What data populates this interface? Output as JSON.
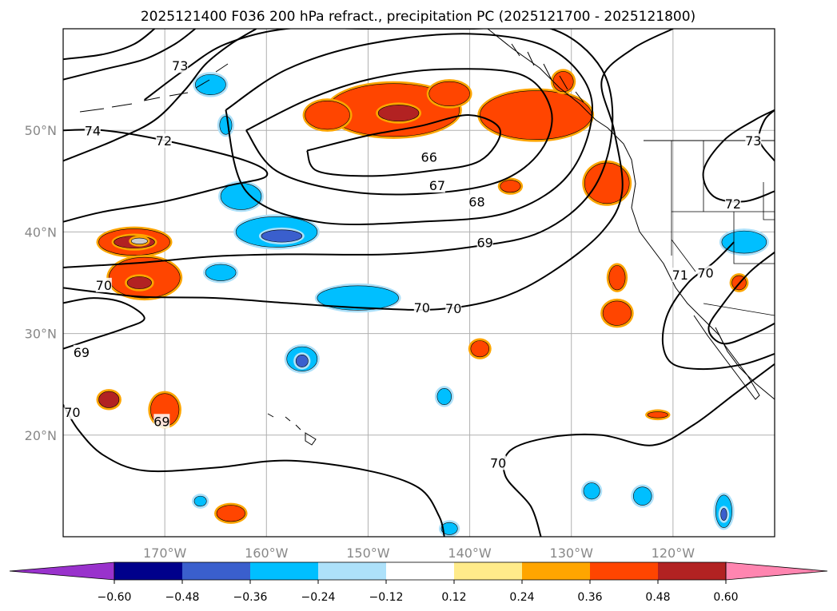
{
  "chart_data": {
    "type": "contour-map",
    "title": "2025121400 F036 200 hPa refract., precipitation PC (2025121700 - 2025121800)",
    "map": {
      "lon_range": [
        -180,
        -110
      ],
      "lat_range": [
        10,
        60
      ],
      "lon_ticks": [
        -170,
        -160,
        -150,
        -140,
        -130,
        -120
      ],
      "lon_tick_labels": [
        "170°W",
        "160°W",
        "150°W",
        "140°W",
        "130°W",
        "120°W"
      ],
      "lat_ticks": [
        20,
        30,
        40,
        50
      ],
      "lat_tick_labels": [
        "20°N",
        "30°N",
        "40°N",
        "50°N"
      ],
      "grid": true
    },
    "contour_labels": [
      {
        "text": "74",
        "lon": -177.1,
        "lat": 49.9
      },
      {
        "text": "73",
        "lon": -168.5,
        "lat": 56.3
      },
      {
        "text": "72",
        "lon": -170.1,
        "lat": 48.9
      },
      {
        "text": "66",
        "lon": -144.0,
        "lat": 47.3
      },
      {
        "text": "67",
        "lon": -143.2,
        "lat": 44.5
      },
      {
        "text": "68",
        "lon": -139.3,
        "lat": 42.9
      },
      {
        "text": "69",
        "lon": -138.5,
        "lat": 38.9
      },
      {
        "text": "70",
        "lon": -176.0,
        "lat": 34.7
      },
      {
        "text": "70",
        "lon": -144.7,
        "lat": 32.5
      },
      {
        "text": "70",
        "lon": -141.6,
        "lat": 32.4
      },
      {
        "text": "69",
        "lon": -178.2,
        "lat": 28.1
      },
      {
        "text": "70",
        "lon": -179.1,
        "lat": 22.2
      },
      {
        "text": "69",
        "lon": -170.3,
        "lat": 21.3
      },
      {
        "text": "70",
        "lon": -137.2,
        "lat": 17.2
      },
      {
        "text": "73",
        "lon": -112.1,
        "lat": 48.9
      },
      {
        "text": "72",
        "lon": -114.1,
        "lat": 42.7
      },
      {
        "text": "71",
        "lon": -119.3,
        "lat": 35.7
      },
      {
        "text": "70",
        "lon": -116.8,
        "lat": 35.9
      }
    ],
    "contours": [
      {
        "value": 66,
        "path": [
          [
            -156,
            48
          ],
          [
            -150,
            49.5
          ],
          [
            -145,
            50.4
          ],
          [
            -140,
            51.5
          ],
          [
            -137,
            50
          ],
          [
            -139,
            47
          ],
          [
            -144,
            46
          ],
          [
            -150,
            45.5
          ],
          [
            -155,
            46
          ],
          [
            -156,
            48
          ]
        ]
      },
      {
        "value": 67,
        "path": [
          [
            -162,
            50
          ],
          [
            -156,
            53
          ],
          [
            -150,
            55
          ],
          [
            -143,
            56
          ],
          [
            -135,
            55.5
          ],
          [
            -132,
            52
          ],
          [
            -133,
            48
          ],
          [
            -137,
            45
          ],
          [
            -144,
            43.8
          ],
          [
            -152,
            44
          ],
          [
            -159,
            46
          ],
          [
            -162,
            50
          ]
        ]
      },
      {
        "value": 68,
        "path": [
          [
            -164,
            52
          ],
          [
            -158,
            56
          ],
          [
            -150,
            58.5
          ],
          [
            -140,
            59.5
          ],
          [
            -132,
            58
          ],
          [
            -128,
            53
          ],
          [
            -130,
            46
          ],
          [
            -136,
            42
          ],
          [
            -145,
            41
          ],
          [
            -155,
            41
          ],
          [
            -162,
            44
          ],
          [
            -164,
            52
          ]
        ]
      },
      {
        "value": 69,
        "path": [
          [
            -172,
            53
          ],
          [
            -168,
            56
          ],
          [
            -164,
            58.5
          ],
          [
            -158,
            60
          ],
          [
            -150,
            60
          ],
          [
            -140,
            60
          ],
          [
            -132,
            60
          ],
          [
            -127,
            56
          ],
          [
            -126,
            50
          ],
          [
            -128,
            44
          ],
          [
            -133,
            40
          ],
          [
            -140,
            38.5
          ],
          [
            -148,
            37.8
          ],
          [
            -158,
            37.8
          ],
          [
            -165,
            37.6
          ],
          [
            -172,
            37
          ],
          [
            -180,
            36.5
          ]
        ]
      },
      {
        "value": 70,
        "path": [
          [
            -180,
            34.5
          ],
          [
            -176,
            34
          ],
          [
            -172,
            33.6
          ],
          [
            -165,
            33.5
          ],
          [
            -158,
            33
          ],
          [
            -150,
            32.5
          ],
          [
            -143,
            32.4
          ],
          [
            -137,
            33.5
          ],
          [
            -132,
            36
          ],
          [
            -127,
            40
          ],
          [
            -125,
            44
          ],
          [
            -125.8,
            50
          ],
          [
            -127,
            55
          ],
          [
            -124,
            58
          ],
          [
            -120,
            60
          ]
        ]
      },
      {
        "value": 70,
        "path": [
          [
            -180,
            23
          ],
          [
            -178.5,
            20.5
          ],
          [
            -176,
            18
          ],
          [
            -172,
            16.5
          ],
          [
            -165,
            16.8
          ],
          [
            -158,
            17.5
          ],
          [
            -150,
            16.5
          ],
          [
            -145,
            14.8
          ],
          [
            -143,
            12
          ],
          [
            -142.5,
            10
          ]
        ]
      },
      {
        "value": 70,
        "path": [
          [
            -133,
            10
          ],
          [
            -134,
            13
          ],
          [
            -136.5,
            16
          ],
          [
            -136,
            18.5
          ],
          [
            -132,
            19.8
          ],
          [
            -127,
            20
          ],
          [
            -122,
            19
          ],
          [
            -118,
            21
          ],
          [
            -114,
            24
          ],
          [
            -110,
            27
          ]
        ]
      },
      {
        "value": 71,
        "path": [
          [
            -180,
            41
          ],
          [
            -176,
            42
          ],
          [
            -170,
            43
          ],
          [
            -164,
            44.5
          ],
          [
            -160,
            45.5
          ],
          [
            -162,
            47
          ],
          [
            -170,
            49
          ],
          [
            -176,
            50
          ],
          [
            -180,
            50
          ]
        ]
      },
      {
        "value": 72,
        "path": [
          [
            -180,
            47
          ],
          [
            -175,
            49
          ],
          [
            -171,
            51
          ],
          [
            -168,
            54
          ],
          [
            -166,
            56.5
          ],
          [
            -163.5,
            58.5
          ],
          [
            -161,
            60
          ]
        ]
      },
      {
        "value": 73,
        "path": [
          [
            -180,
            55
          ],
          [
            -176,
            56
          ],
          [
            -172,
            57
          ],
          [
            -169,
            58.5
          ],
          [
            -167,
            60
          ]
        ]
      },
      {
        "value": 74,
        "path": [
          [
            -180,
            57
          ],
          [
            -176,
            57.5
          ],
          [
            -173,
            58.5
          ],
          [
            -171,
            60
          ]
        ]
      },
      {
        "value": 69,
        "path": [
          [
            -180,
            28.5
          ],
          [
            -177,
            29.5
          ],
          [
            -174,
            30.5
          ],
          [
            -172,
            31.5
          ],
          [
            -174,
            33
          ],
          [
            -177,
            33.5
          ],
          [
            -180,
            33
          ]
        ]
      },
      {
        "value": 70,
        "path": [
          [
            -114,
            39
          ],
          [
            -116,
            37
          ],
          [
            -118.5,
            35
          ],
          [
            -120.5,
            32
          ],
          [
            -121,
            29
          ],
          [
            -120,
            27
          ],
          [
            -117,
            26.5
          ],
          [
            -113,
            27
          ],
          [
            -110,
            28
          ]
        ]
      },
      {
        "value": 71,
        "path": [
          [
            -110,
            38
          ],
          [
            -112.5,
            36
          ],
          [
            -115,
            33
          ],
          [
            -116.5,
            30.5
          ],
          [
            -115,
            29
          ],
          [
            -112,
            30
          ],
          [
            -110,
            31
          ]
        ]
      },
      {
        "value": 72,
        "path": [
          [
            -110,
            44
          ],
          [
            -113,
            43
          ],
          [
            -116,
            43.5
          ],
          [
            -117,
            46
          ],
          [
            -115,
            49
          ],
          [
            -112,
            51
          ],
          [
            -110,
            52
          ]
        ]
      },
      {
        "value": 73,
        "path": [
          [
            -110,
            47
          ],
          [
            -111.5,
            49
          ],
          [
            -111,
            51
          ],
          [
            -110,
            52
          ]
        ]
      }
    ],
    "precip_pc_areas": [
      {
        "bin": "0.36",
        "lon": -147.5,
        "lat": 52.0,
        "rlon": 6.5,
        "rlat": 2.6
      },
      {
        "bin": "0.36",
        "lon": -154.0,
        "lat": 51.5,
        "rlon": 2.2,
        "rlat": 1.4
      },
      {
        "bin": "0.36",
        "lon": -142.0,
        "lat": 53.6,
        "rlon": 2.0,
        "rlat": 1.2
      },
      {
        "bin": "0.36",
        "lon": -133.5,
        "lat": 51.5,
        "rlon": 5.5,
        "rlat": 2.4
      },
      {
        "bin": "0.48",
        "lon": -147.0,
        "lat": 51.7,
        "rlon": 2.0,
        "rlat": 0.8
      },
      {
        "bin": "0.36",
        "lon": -126.5,
        "lat": 44.8,
        "rlon": 2.2,
        "rlat": 2.0
      },
      {
        "bin": "0.36",
        "lon": -173.0,
        "lat": 39.0,
        "rlon": 3.5,
        "rlat": 1.3
      },
      {
        "bin": "0.48",
        "lon": -173.0,
        "lat": 39.0,
        "rlon": 2.0,
        "rlat": 0.6
      },
      {
        "bin": "0.60",
        "lon": -172.5,
        "lat": 39.1,
        "rlon": 0.8,
        "rlat": 0.3
      },
      {
        "bin": "0.36",
        "lon": -172.0,
        "lat": 35.5,
        "rlon": 3.5,
        "rlat": 2.0
      },
      {
        "bin": "0.48",
        "lon": -172.5,
        "lat": 35.0,
        "rlon": 1.2,
        "rlat": 0.6
      },
      {
        "bin": "0.36",
        "lon": -170.0,
        "lat": 22.5,
        "rlon": 1.4,
        "rlat": 1.6
      },
      {
        "bin": "0.48",
        "lon": -175.5,
        "lat": 23.5,
        "rlon": 1.0,
        "rlat": 0.8
      },
      {
        "bin": "0.36",
        "lon": -163.5,
        "lat": 12.3,
        "rlon": 1.4,
        "rlat": 0.8
      },
      {
        "bin": "0.36",
        "lon": -125.5,
        "lat": 32.0,
        "rlon": 1.4,
        "rlat": 1.2
      },
      {
        "bin": "0.36",
        "lon": -125.5,
        "lat": 35.5,
        "rlon": 0.8,
        "rlat": 1.2
      },
      {
        "bin": "0.36",
        "lon": -139.0,
        "lat": 28.5,
        "rlon": 0.9,
        "rlat": 0.8
      },
      {
        "bin": "0.36",
        "lon": -136.0,
        "lat": 44.5,
        "rlon": 1.0,
        "rlat": 0.6
      },
      {
        "bin": "0.36",
        "lon": -121.5,
        "lat": 22.0,
        "rlon": 1.0,
        "rlat": 0.3
      },
      {
        "bin": "0.36",
        "lon": -113.5,
        "lat": 35.0,
        "rlon": 0.7,
        "rlat": 0.7
      },
      {
        "bin": "0.36",
        "lon": -130.8,
        "lat": 54.8,
        "rlon": 1.0,
        "rlat": 1.0
      },
      {
        "bin": "-0.36",
        "lon": -159.0,
        "lat": 40.0,
        "rlon": 4.0,
        "rlat": 1.5
      },
      {
        "bin": "-0.48",
        "lon": -158.5,
        "lat": 39.6,
        "rlon": 2.0,
        "rlat": 0.6
      },
      {
        "bin": "-0.36",
        "lon": -162.5,
        "lat": 43.5,
        "rlon": 2.0,
        "rlat": 1.3
      },
      {
        "bin": "-0.36",
        "lon": -151.0,
        "lat": 33.5,
        "rlon": 4.0,
        "rlat": 1.2
      },
      {
        "bin": "-0.36",
        "lon": -164.5,
        "lat": 36.0,
        "rlon": 1.5,
        "rlat": 0.8
      },
      {
        "bin": "-0.36",
        "lon": -156.5,
        "lat": 27.5,
        "rlon": 1.5,
        "rlat": 1.2
      },
      {
        "bin": "-0.48",
        "lon": -156.5,
        "lat": 27.3,
        "rlon": 0.6,
        "rlat": 0.6
      },
      {
        "bin": "-0.36",
        "lon": -113.0,
        "lat": 39.0,
        "rlon": 2.2,
        "rlat": 1.1
      },
      {
        "bin": "-0.36",
        "lon": -142.5,
        "lat": 23.8,
        "rlon": 0.7,
        "rlat": 0.8
      },
      {
        "bin": "-0.36",
        "lon": -115.0,
        "lat": 12.5,
        "rlon": 0.8,
        "rlat": 1.6
      },
      {
        "bin": "-0.48",
        "lon": -115.0,
        "lat": 12.2,
        "rlon": 0.3,
        "rlat": 0.6
      },
      {
        "bin": "-0.36",
        "lon": -123.0,
        "lat": 14.0,
        "rlon": 0.9,
        "rlat": 0.9
      },
      {
        "bin": "-0.36",
        "lon": -128.0,
        "lat": 14.5,
        "rlon": 0.8,
        "rlat": 0.8
      },
      {
        "bin": "-0.36",
        "lon": -142.0,
        "lat": 10.8,
        "rlon": 0.8,
        "rlat": 0.6
      },
      {
        "bin": "-0.36",
        "lon": -165.5,
        "lat": 54.5,
        "rlon": 1.5,
        "rlat": 1.0
      },
      {
        "bin": "-0.36",
        "lon": -164.0,
        "lat": 50.5,
        "rlon": 0.6,
        "rlat": 0.9
      },
      {
        "bin": "-0.36",
        "lon": -166.5,
        "lat": 13.5,
        "rlon": 0.6,
        "rlat": 0.5
      }
    ],
    "colorbar": {
      "ticks": [
        "−0.60",
        "−0.48",
        "−0.36",
        "−0.24",
        "−0.12",
        "0.12",
        "0.24",
        "0.36",
        "0.48",
        "0.60"
      ],
      "bins": [
        {
          "key": "lt-0.60",
          "color": "#9932CC"
        },
        {
          "key": "-0.60",
          "color": "#00008B"
        },
        {
          "key": "-0.48",
          "color": "#3A5FCD"
        },
        {
          "key": "-0.36",
          "color": "#00BFFF"
        },
        {
          "key": "-0.24",
          "color": "#ADE1FA"
        },
        {
          "key": "-0.12",
          "color": "#FFFFFF"
        },
        {
          "key": "0.12",
          "color": "#FFEB8A"
        },
        {
          "key": "0.24",
          "color": "#FFA500"
        },
        {
          "key": "0.36",
          "color": "#FF4500"
        },
        {
          "key": "0.48",
          "color": "#B22222"
        },
        {
          "key": "gt-0.60",
          "color": "#FF85B0"
        }
      ]
    }
  }
}
